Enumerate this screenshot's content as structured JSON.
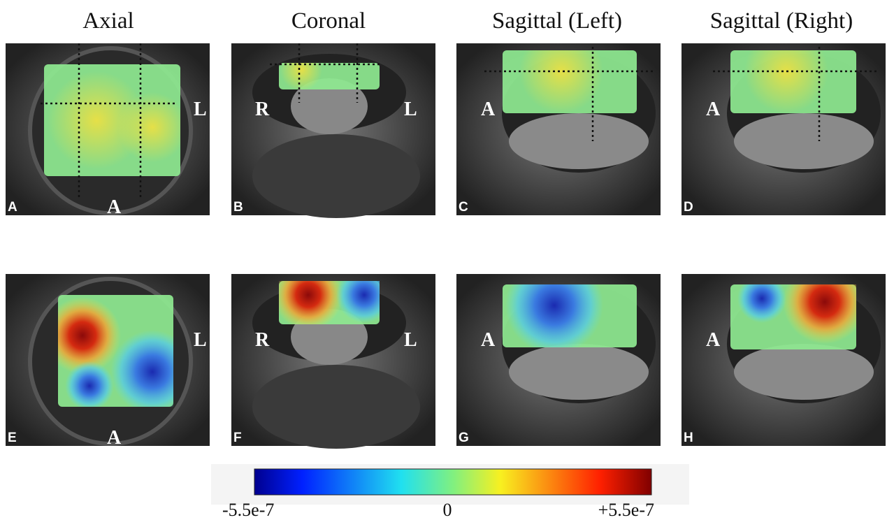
{
  "column_titles": [
    "Axial",
    "Coronal",
    "Sagittal (Left)",
    "Sagittal (Right)"
  ],
  "panels": [
    {
      "letter": "A",
      "labels": [
        "L",
        "A"
      ]
    },
    {
      "letter": "B",
      "labels": [
        "R",
        "L"
      ]
    },
    {
      "letter": "C",
      "labels": [
        "A"
      ]
    },
    {
      "letter": "D",
      "labels": [
        "A"
      ]
    },
    {
      "letter": "E",
      "labels": [
        "L",
        "A"
      ]
    },
    {
      "letter": "F",
      "labels": [
        "R",
        "L"
      ]
    },
    {
      "letter": "G",
      "labels": [
        "A"
      ]
    },
    {
      "letter": "H",
      "labels": [
        "A"
      ]
    }
  ],
  "colorbar": {
    "labels": [
      "-5.5e-7",
      "0",
      "+5.5e-7"
    ]
  }
}
